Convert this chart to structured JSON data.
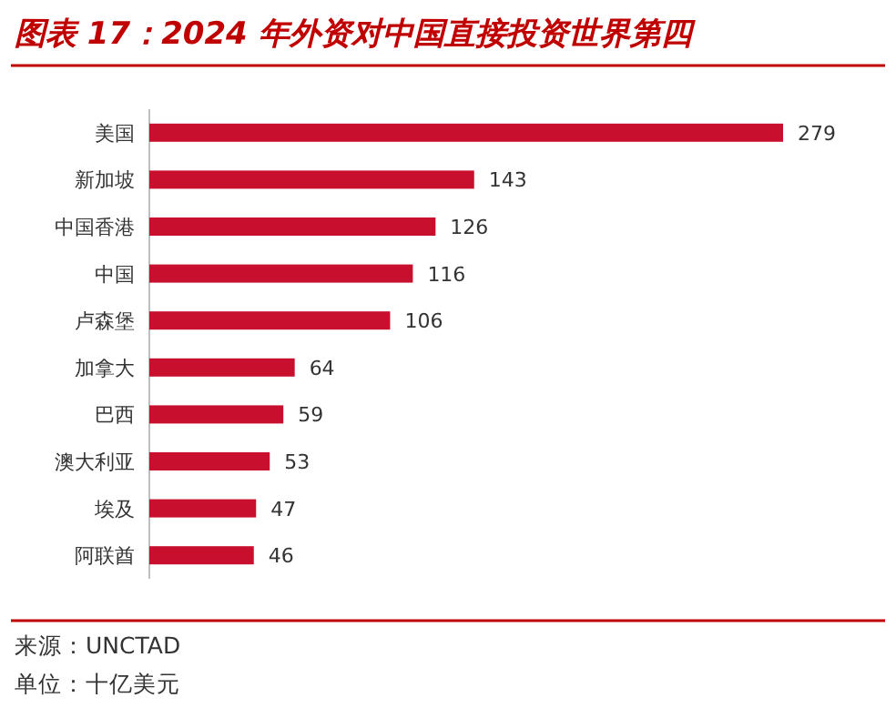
{
  "chart_data": {
    "type": "bar",
    "orientation": "horizontal",
    "title": "图表 17：2024 年外资对中国直接投资世界第四",
    "categories": [
      "美国",
      "新加坡",
      "中国香港",
      "中国",
      "卢森堡",
      "加拿大",
      "巴西",
      "澳大利亚",
      "埃及",
      "阿联酋"
    ],
    "values": [
      279,
      143,
      126,
      116,
      106,
      64,
      59,
      53,
      47,
      46
    ],
    "color": "#c8102e",
    "data_labels": true,
    "annotations": [
      "来源：UNCTAD",
      "单位：十亿美元"
    ]
  }
}
